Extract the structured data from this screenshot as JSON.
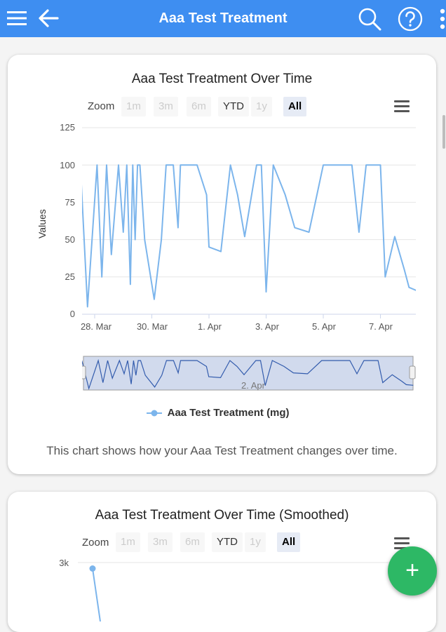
{
  "header": {
    "title": "Aaa Test Treatment",
    "icons": [
      "menu-icon",
      "back-arrow-icon",
      "search-icon",
      "help-icon",
      "more-vertical-icon"
    ]
  },
  "chart1": {
    "title": "Aaa Test Treatment Over Time",
    "zoom_label": "Zoom",
    "zoom_buttons": [
      "1m",
      "3m",
      "6m",
      "YTD",
      "1y",
      "All"
    ],
    "zoom_selected": "All",
    "navigator_label": "2. Apr",
    "caption": "This chart shows how your Aaa Test Treatment changes over time."
  },
  "chart2": {
    "title": "Aaa Test Treatment Over Time (Smoothed)",
    "zoom_label": "Zoom",
    "zoom_buttons": [
      "1m",
      "3m",
      "6m",
      "YTD",
      "1y",
      "All"
    ],
    "zoom_selected": "All",
    "y_ticks": [
      "3k"
    ]
  },
  "fab": {
    "label": "+"
  },
  "colors": {
    "header": "#3e8ef1",
    "series": "#7cb5ec",
    "fab": "#2db865",
    "navigator": "#335cad"
  },
  "chart_data": [
    {
      "type": "line",
      "title": "Aaa Test Treatment Over Time",
      "ylabel": "Values",
      "ylim": [
        0,
        125
      ],
      "y_ticks": [
        "0",
        "25",
        "50",
        "75",
        "100",
        "125"
      ],
      "x_ticks": [
        "28. Mar",
        "30. Mar",
        "1. Apr",
        "3. Apr",
        "5. Apr",
        "7. Apr"
      ],
      "legend": "top-none / bottom-center",
      "series": [
        {
          "name": "Aaa Test Treatment (mg)",
          "x": [
            "2024-03-27 12:00",
            "2024-03-27 18:00",
            "2024-03-28 02:00",
            "2024-03-28 06:00",
            "2024-03-28 10:00",
            "2024-03-28 14:00",
            "2024-03-28 20:00",
            "2024-03-29 00:00",
            "2024-03-29 03:00",
            "2024-03-29 06:00",
            "2024-03-29 08:00",
            "2024-03-29 10:00",
            "2024-03-29 12:00",
            "2024-03-29 14:00",
            "2024-03-29 18:00",
            "2024-03-30 02:00",
            "2024-03-30 08:00",
            "2024-03-30 12:00",
            "2024-03-30 18:00",
            "2024-03-30 22:00",
            "2024-03-31 00:00",
            "2024-03-31 06:00",
            "2024-03-31 14:00",
            "2024-03-31 22:00",
            "2024-04-01 00:00",
            "2024-04-01 10:00",
            "2024-04-01 18:00",
            "2024-04-02 00:00",
            "2024-04-02 06:00",
            "2024-04-02 16:00",
            "2024-04-02 20:00",
            "2024-04-03 00:00",
            "2024-04-03 06:00",
            "2024-04-03 16:00",
            "2024-04-04 00:00",
            "2024-04-04 12:00",
            "2024-04-05 00:00",
            "2024-04-05 12:00",
            "2024-04-06 00:00",
            "2024-04-06 06:00",
            "2024-04-06 12:00",
            "2024-04-06 20:00",
            "2024-04-07 00:00",
            "2024-04-07 04:00",
            "2024-04-07 12:00",
            "2024-04-07 20:00",
            "2024-04-08 00:00",
            "2024-04-08 06:00"
          ],
          "values": [
            100,
            5,
            100,
            25,
            100,
            40,
            100,
            55,
            100,
            20,
            100,
            50,
            100,
            100,
            50,
            10,
            50,
            100,
            100,
            58,
            100,
            100,
            100,
            80,
            45,
            42,
            100,
            80,
            52,
            100,
            100,
            15,
            100,
            80,
            58,
            55,
            100,
            100,
            100,
            55,
            100,
            100,
            100,
            25,
            52,
            30,
            18,
            16
          ]
        }
      ]
    },
    {
      "type": "line",
      "title": "Aaa Test Treatment Over Time (Smoothed)",
      "y_ticks": [
        "3k"
      ],
      "series": [
        {
          "x": [
            "2024-03-27 12:00"
          ],
          "values": [
            2850
          ]
        }
      ]
    }
  ]
}
